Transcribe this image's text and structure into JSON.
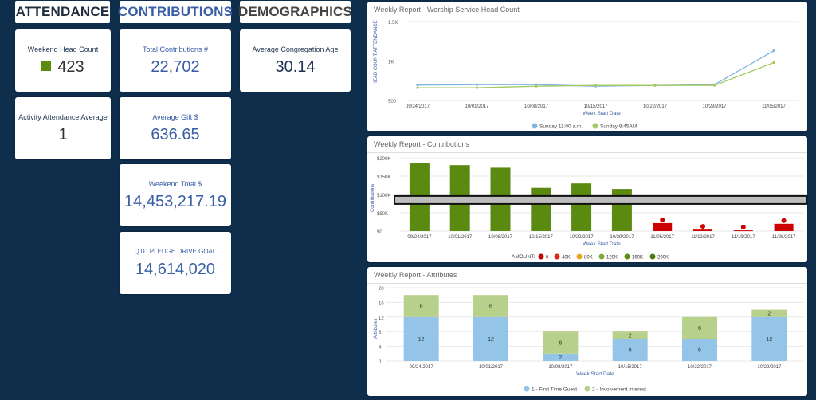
{
  "headers": {
    "attendance": "ATTENDANCE",
    "contributions": "CONTRIBUTIONS",
    "demographics": "DEMOGRAPHICS"
  },
  "colors": {
    "background": "#0f2e4c",
    "tab_active": "#3a5ea5",
    "green_bar": "#5a8a0f",
    "blue_line": "#7fb5e1",
    "green_line": "#a6c964",
    "attr_blue": "#94c4e8",
    "attr_green": "#b7d18c",
    "dot_red": "#cc0000"
  },
  "tiles": {
    "weekend_head_count": {
      "label": "Weekend Head Count",
      "value": "423",
      "icon": "green-square-icon"
    },
    "activity_attendance": {
      "label": "Activity Attendance Average",
      "value": "1"
    },
    "total_contributions": {
      "label": "Total Contributions #",
      "value": "22,702"
    },
    "average_gift": {
      "label": "Average Gift $",
      "value": "636.65"
    },
    "weekend_total": {
      "label": "Weekend Total $",
      "value": "14,453,217.19"
    },
    "qtd_pledge": {
      "label": "QTD PLEDGE DRIVE GOAL",
      "value": "14,614,020"
    },
    "avg_age": {
      "label": "Average Congregation Age",
      "value": "30.14"
    }
  },
  "panels": {
    "worship": {
      "title": "Weekly Report - Worship Service Head Count"
    },
    "contributions": {
      "title": "Weekly Report - Contributions"
    },
    "attributes": {
      "title": "Weekly Report - Attributes"
    }
  },
  "chart_data": [
    {
      "type": "line",
      "title": "Weekly Report - Worship Service Head Count",
      "xlabel": "Week Start Date",
      "ylabel": "HEAD COUNT ATTENDANCE",
      "yticks": [
        "1.5K",
        "1K",
        "500"
      ],
      "ylim": [
        500,
        1500
      ],
      "categories": [
        "09/24/2017",
        "10/01/2017",
        "10/08/2017",
        "10/15/2017",
        "10/22/2017",
        "10/29/2017",
        "11/05/2017"
      ],
      "series": [
        {
          "name": "Sunday 11:00 a.m.",
          "color": "#7fb5e1",
          "values": [
            695,
            700,
            700,
            680,
            690,
            700,
            1130
          ]
        },
        {
          "name": "Sunday 9:45AM",
          "color": "#a6c964",
          "values": [
            660,
            660,
            680,
            690,
            690,
            690,
            980
          ]
        }
      ],
      "legend": "bottom",
      "grid": true
    },
    {
      "type": "bar",
      "title": "Weekly Report - Contributions",
      "xlabel": "Week Start Date",
      "ylabel": "Contributions",
      "yticks": [
        "$200K",
        "$150K",
        "$100K",
        "$50K",
        "$0"
      ],
      "ylim": [
        0,
        200000
      ],
      "categories": [
        "09/24/2017",
        "10/01/2017",
        "10/08/2017",
        "10/15/2017",
        "10/22/2017",
        "10/29/2017",
        "11/05/2017",
        "11/12/2017",
        "11/19/2017",
        "11/26/2017"
      ],
      "values": [
        185000,
        180000,
        173000,
        118000,
        130000,
        115000,
        22000,
        4000,
        2000,
        20000
      ],
      "goal_line": 85000,
      "legend_title": "AMOUNT:",
      "legend_items": [
        {
          "label": "0",
          "color": "#cc0000"
        },
        {
          "label": "40K",
          "color": "#e0251b"
        },
        {
          "label": "80K",
          "color": "#e8a21c"
        },
        {
          "label": "120K",
          "color": "#7fa83a"
        },
        {
          "label": "160K",
          "color": "#5a8a0f"
        },
        {
          "label": "200K",
          "color": "#4a7a0c"
        }
      ],
      "legend": "bottom",
      "grid": true
    },
    {
      "type": "bar",
      "stacked": true,
      "title": "Weekly Report - Attributes",
      "xlabel": "Week Start Date",
      "ylabel": "Attributes",
      "yticks": [
        "20",
        "16",
        "12",
        "8",
        "4",
        "0"
      ],
      "ylim": [
        0,
        20
      ],
      "categories": [
        "09/24/2017",
        "10/01/2017",
        "10/08/2017",
        "10/15/2017",
        "10/22/2017",
        "10/29/2017"
      ],
      "series": [
        {
          "name": "1 - First Time Guest",
          "color": "#94c4e8",
          "values": [
            12,
            12,
            2,
            6,
            6,
            12
          ]
        },
        {
          "name": "2 - Involvement Interest",
          "color": "#b7d18c",
          "values": [
            6,
            6,
            6,
            2,
            6,
            2
          ]
        }
      ],
      "legend": "bottom",
      "grid": true
    }
  ]
}
